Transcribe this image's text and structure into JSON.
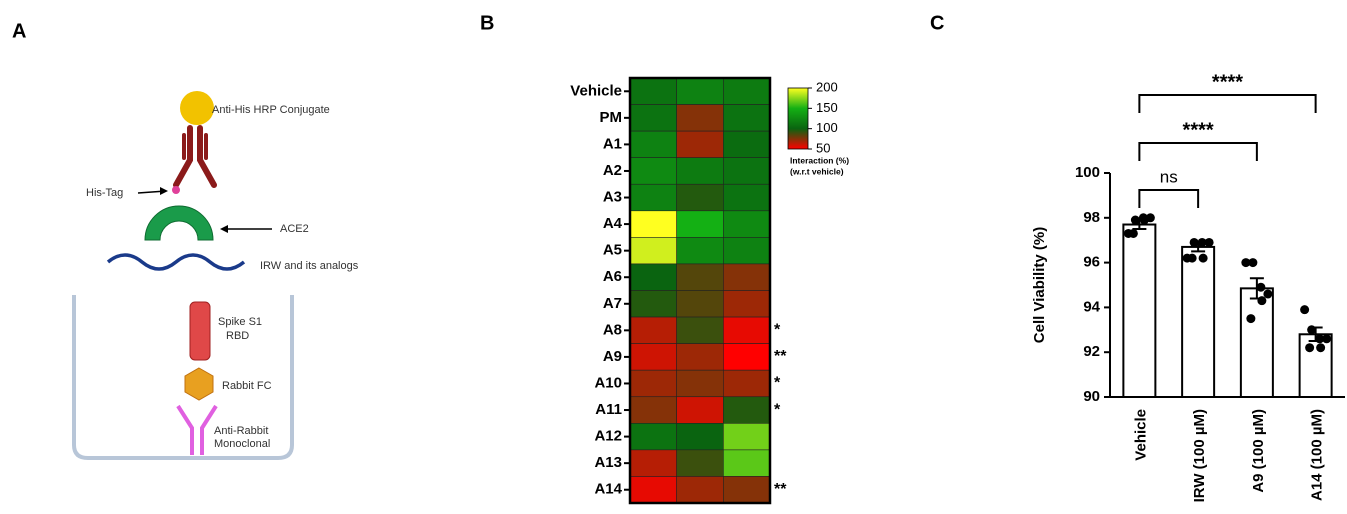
{
  "panel_labels": [
    "A",
    "B",
    "C"
  ],
  "diagram": {
    "conjugate": "Anti-His HRP Conjugate",
    "his_tag": "His-Tag",
    "ace2": "ACE2",
    "peptides": "IRW and its analogs",
    "spike": [
      "Spike S1",
      "RBD"
    ],
    "rabbit_fc": "Rabbit FC",
    "anti_rabbit": [
      "Anti-Rabbit",
      "Monoclonal"
    ]
  },
  "chart_data": [
    {
      "type": "heatmap",
      "categories": [
        "Vehicle",
        "PM",
        "A1",
        "A2",
        "A3",
        "A4",
        "A5",
        "A6",
        "A7",
        "A8",
        "A9",
        "A10",
        "A11",
        "A12",
        "A13",
        "A14"
      ],
      "values": [
        [
          110,
          120,
          115
        ],
        [
          110,
          75,
          110
        ],
        [
          120,
          70,
          105
        ],
        [
          125,
          115,
          110
        ],
        [
          120,
          95,
          110
        ],
        [
          200,
          150,
          125
        ],
        [
          190,
          125,
          120
        ],
        [
          100,
          85,
          75
        ],
        [
          95,
          85,
          70
        ],
        [
          65,
          90,
          55
        ],
        [
          60,
          70,
          50
        ],
        [
          70,
          75,
          70
        ],
        [
          75,
          60,
          95
        ],
        [
          110,
          100,
          170
        ],
        [
          65,
          90,
          165
        ],
        [
          55,
          70,
          75
        ]
      ],
      "annotations": [
        null,
        null,
        null,
        null,
        null,
        null,
        null,
        null,
        null,
        "*",
        "**",
        "*",
        "*",
        null,
        null,
        "**"
      ],
      "colors": [
        "#ff0000",
        "#0a6410",
        "#14b014",
        "#ffff20"
      ],
      "zlim": [
        50,
        200
      ],
      "zticks": [
        50,
        100,
        150,
        200
      ],
      "colorbar_label": [
        "Interaction (%)",
        "(w.r.t vehicle)"
      ]
    },
    {
      "type": "bar",
      "categories": [
        "Vehicle",
        "IRW (100 µM)",
        "A9 (100 µM)",
        "A14 (100 µM)"
      ],
      "values": [
        97.7,
        96.7,
        94.85,
        92.8
      ],
      "errors": [
        0.2,
        0.2,
        0.45,
        0.3
      ],
      "points": [
        [
          97.3,
          97.9,
          98.0,
          98.0,
          97.9,
          97.3
        ],
        [
          96.2,
          96.9,
          96.9,
          96.9,
          96.2,
          96.2
        ],
        [
          96.0,
          96.0,
          94.9,
          94.6,
          94.3,
          93.5
        ],
        [
          93.9,
          93.0,
          92.6,
          92.6,
          92.2,
          92.2
        ]
      ],
      "y_label": "Cell Viability (%)",
      "ylim": [
        90,
        100
      ],
      "yticks": [
        90,
        92,
        94,
        96,
        98,
        100
      ],
      "comparisons": [
        "ns",
        "****",
        "****"
      ],
      "color": "#ffffff"
    }
  ]
}
